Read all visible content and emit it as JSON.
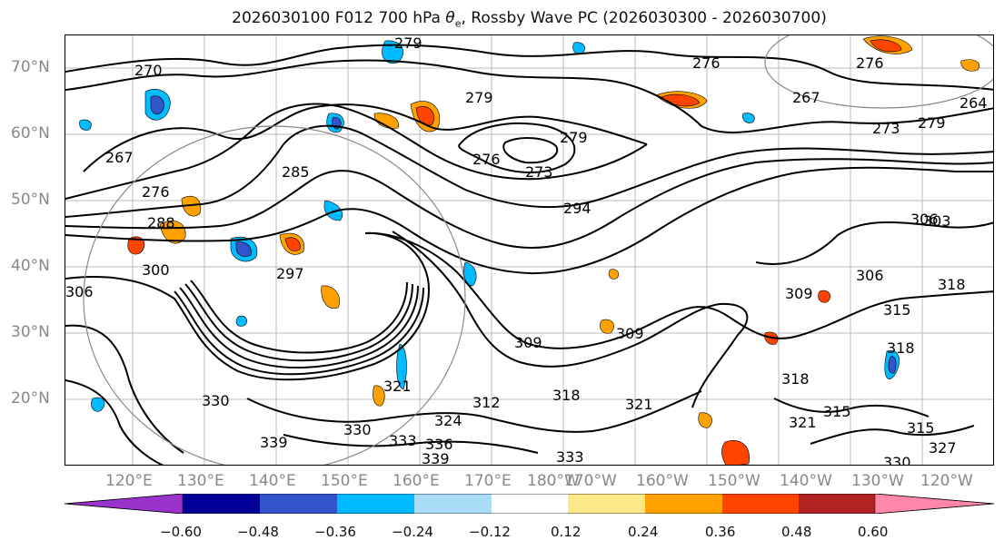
{
  "title": {
    "prefix": "2026030100 F012 700 hPa ",
    "theta": "θ",
    "sub": "e",
    "suffix": ", Rossby Wave PC (2026030300 - 2026030700)"
  },
  "lat_labels": [
    "70°N",
    "60°N",
    "50°N",
    "40°N",
    "30°N",
    "20°N"
  ],
  "lon_labels": [
    "120°E",
    "130°E",
    "140°E",
    "150°E",
    "160°E",
    "170°E",
    "180°W",
    "170°W",
    "160°W",
    "150°W",
    "140°W",
    "130°W",
    "120°W"
  ],
  "contour_labels": [
    "270",
    "279",
    "279",
    "279",
    "273",
    "276",
    "276",
    "267",
    "264",
    "273",
    "279",
    "276",
    "267",
    "276",
    "285",
    "288",
    "294",
    "297",
    "300",
    "306",
    "306",
    "303",
    "309",
    "309",
    "309",
    "318",
    "318",
    "315",
    "312",
    "318",
    "321",
    "315",
    "318",
    "321",
    "315",
    "330",
    "333",
    "330",
    "336",
    "339",
    "339",
    "327",
    "321",
    "330",
    "306",
    "324",
    "333"
  ],
  "colorbar": {
    "tick_labels": [
      "−0.60",
      "−0.48",
      "−0.36",
      "−0.24",
      "−0.12",
      "0.12",
      "0.24",
      "0.36",
      "0.48",
      "0.60"
    ],
    "colors": [
      "#9933cc",
      "#000099",
      "#3355cc",
      "#00bbff",
      "#aaddf8",
      "#ffffff",
      "#ffe888",
      "#ffa200",
      "#ff4400",
      "#b22222",
      "#ff88aa"
    ]
  }
}
